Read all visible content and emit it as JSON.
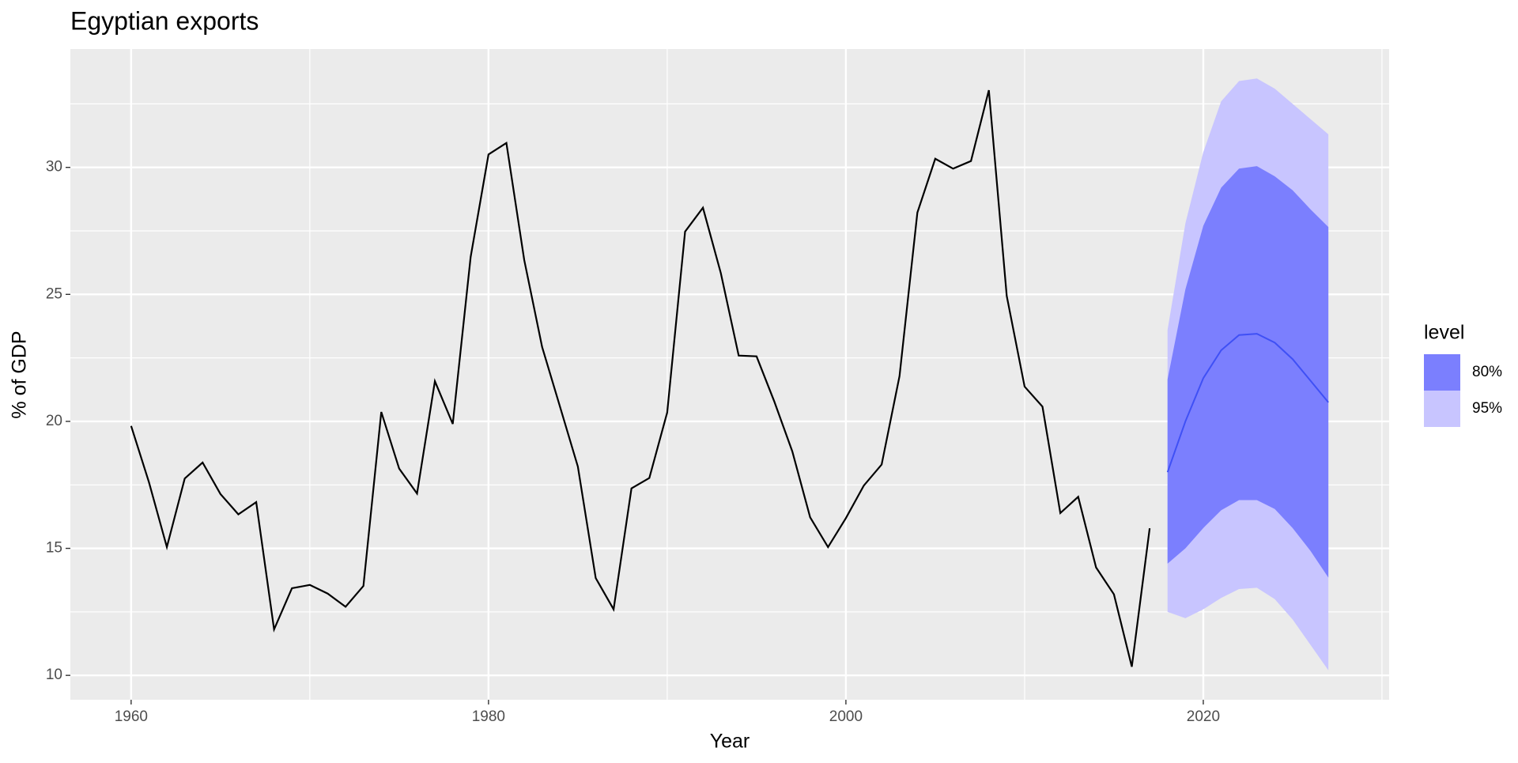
{
  "chart_data": {
    "type": "line",
    "title": "Egyptian exports",
    "x_label": "Year",
    "y_label": "% of GDP",
    "history": {
      "color": "#000000",
      "x": [
        1960,
        1961,
        1962,
        1963,
        1964,
        1965,
        1966,
        1967,
        1968,
        1969,
        1970,
        1971,
        1972,
        1973,
        1974,
        1975,
        1976,
        1977,
        1978,
        1979,
        1980,
        1981,
        1982,
        1983,
        1984,
        1985,
        1986,
        1987,
        1988,
        1989,
        1990,
        1991,
        1992,
        1993,
        1994,
        1995,
        1996,
        1997,
        1998,
        1999,
        2000,
        2001,
        2002,
        2003,
        2004,
        2005,
        2006,
        2007,
        2008,
        2009,
        2010,
        2011,
        2012,
        2013,
        2014,
        2015,
        2016,
        2017
      ],
      "values": [
        19.82,
        17.6,
        15.05,
        17.75,
        18.38,
        17.14,
        16.34,
        16.82,
        11.81,
        13.43,
        13.56,
        13.22,
        12.7,
        13.52,
        20.37,
        18.14,
        17.16,
        21.58,
        19.9,
        26.47,
        30.51,
        30.96,
        26.35,
        22.93,
        20.58,
        18.22,
        13.83,
        12.6,
        17.36,
        17.77,
        20.35,
        27.47,
        28.41,
        25.84,
        22.59,
        22.56,
        20.77,
        18.82,
        16.22,
        15.05,
        16.19,
        17.47,
        18.3,
        21.78,
        28.22,
        30.34,
        29.95,
        30.25,
        33.04,
        24.94,
        21.37,
        20.58,
        16.39,
        17.03,
        14.25,
        13.19,
        10.34,
        15.79
      ]
    },
    "forecast": {
      "x": [
        2018,
        2019,
        2020,
        2021,
        2022,
        2023,
        2024,
        2025,
        2026,
        2027
      ],
      "mean": [
        18.0,
        20.0,
        21.7,
        22.8,
        23.4,
        23.45,
        23.1,
        22.45,
        21.6,
        20.75
      ],
      "mean_color": "#3f50f5",
      "legend_title": "level",
      "intervals": [
        {
          "name": "80%",
          "color": "#7b7ffe",
          "lower": [
            14.4,
            15.0,
            15.8,
            16.5,
            16.9,
            16.9,
            16.55,
            15.8,
            14.9,
            13.85
          ],
          "upper": [
            21.65,
            25.2,
            27.7,
            29.2,
            29.95,
            30.05,
            29.65,
            29.1,
            28.35,
            27.65
          ]
        },
        {
          "name": "95%",
          "color": "#c8c5ff",
          "lower": [
            12.5,
            12.25,
            12.6,
            13.05,
            13.4,
            13.45,
            13.0,
            12.2,
            11.2,
            10.2
          ],
          "upper": [
            23.6,
            27.8,
            30.6,
            32.6,
            33.4,
            33.5,
            33.1,
            32.5,
            31.9,
            31.3
          ]
        }
      ]
    },
    "xlim": [
      1956.6,
      2030.4
    ],
    "ylim": [
      9.04,
      34.66
    ],
    "xticks": [
      1960,
      1980,
      2000,
      2020
    ],
    "yticks": [
      10,
      15,
      20,
      25,
      30
    ],
    "grid": true,
    "legend_position": "right"
  }
}
